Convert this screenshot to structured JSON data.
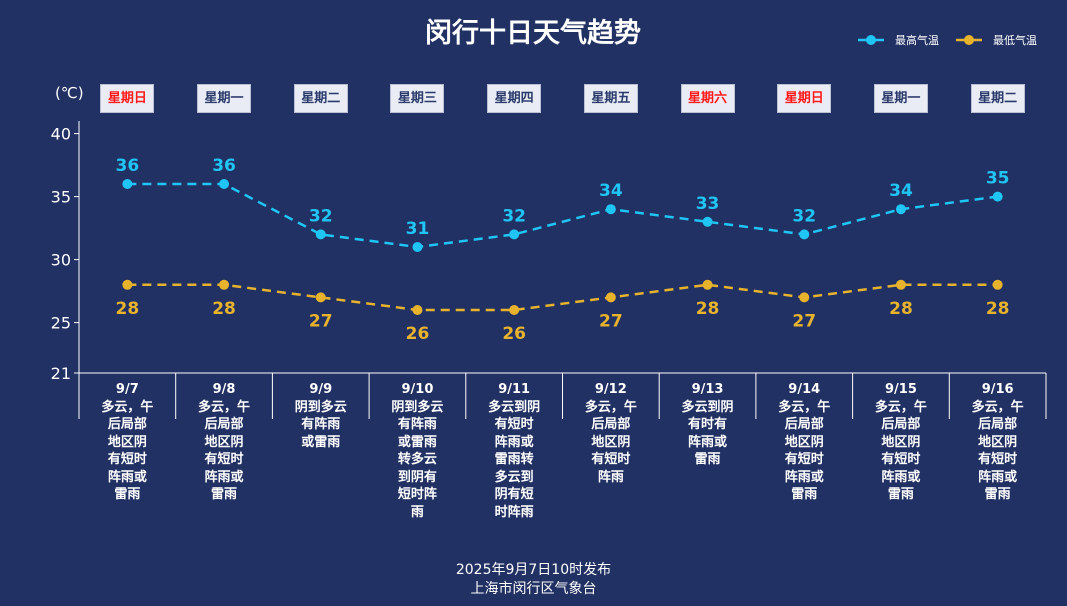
{
  "chart_data": {
    "type": "line",
    "title": "闵行十日天气趋势",
    "ylabel": "(℃)",
    "ylim": [
      21,
      41
    ],
    "yticks": [
      21,
      25,
      30,
      35,
      40
    ],
    "grid": false,
    "legend_position": "top-right",
    "categories": [
      "9/7",
      "9/8",
      "9/9",
      "9/10",
      "9/11",
      "9/12",
      "9/13",
      "9/14",
      "9/15",
      "9/16"
    ],
    "weekdays": [
      "星期日",
      "星期一",
      "星期二",
      "星期三",
      "星期四",
      "星期五",
      "星期六",
      "星期日",
      "星期一",
      "星期二"
    ],
    "weekend": [
      true,
      false,
      false,
      false,
      false,
      false,
      true,
      true,
      false,
      false
    ],
    "weather": [
      "多云，午\n后局部\n地区阴\n有短时\n阵雨或\n雷雨",
      "多云，午\n后局部\n地区阴\n有短时\n阵雨或\n雷雨",
      "阴到多云\n有阵雨\n或雷雨",
      "阴到多云\n有阵雨\n或雷雨\n转多云\n到阴有\n短时阵\n雨",
      "多云到阴\n有短时\n阵雨或\n雷雨转\n多云到\n阴有短\n时阵雨",
      "多云，午\n后局部\n地区阴\n有短时\n阵雨",
      "多云到阴\n有时有\n阵雨或\n雷雨",
      "多云，午\n后局部\n地区阴\n有短时\n阵雨或\n雷雨",
      "多云，午\n后局部\n地区阴\n有短时\n阵雨或\n雷雨",
      "多云，午\n后局部\n地区阴\n有短时\n阵雨或\n雷雨"
    ],
    "series": [
      {
        "name": "最高气温",
        "color": "#1fc5f5",
        "values": [
          36,
          36,
          32,
          31,
          32,
          34,
          33,
          32,
          34,
          35
        ]
      },
      {
        "name": "最低气温",
        "color": "#e8b32c",
        "values": [
          28,
          28,
          27,
          26,
          26,
          27,
          28,
          27,
          28,
          28
        ]
      }
    ]
  },
  "footer": {
    "published": "2025年9月7日10时发布",
    "org": "上海市闵行区气象台"
  }
}
